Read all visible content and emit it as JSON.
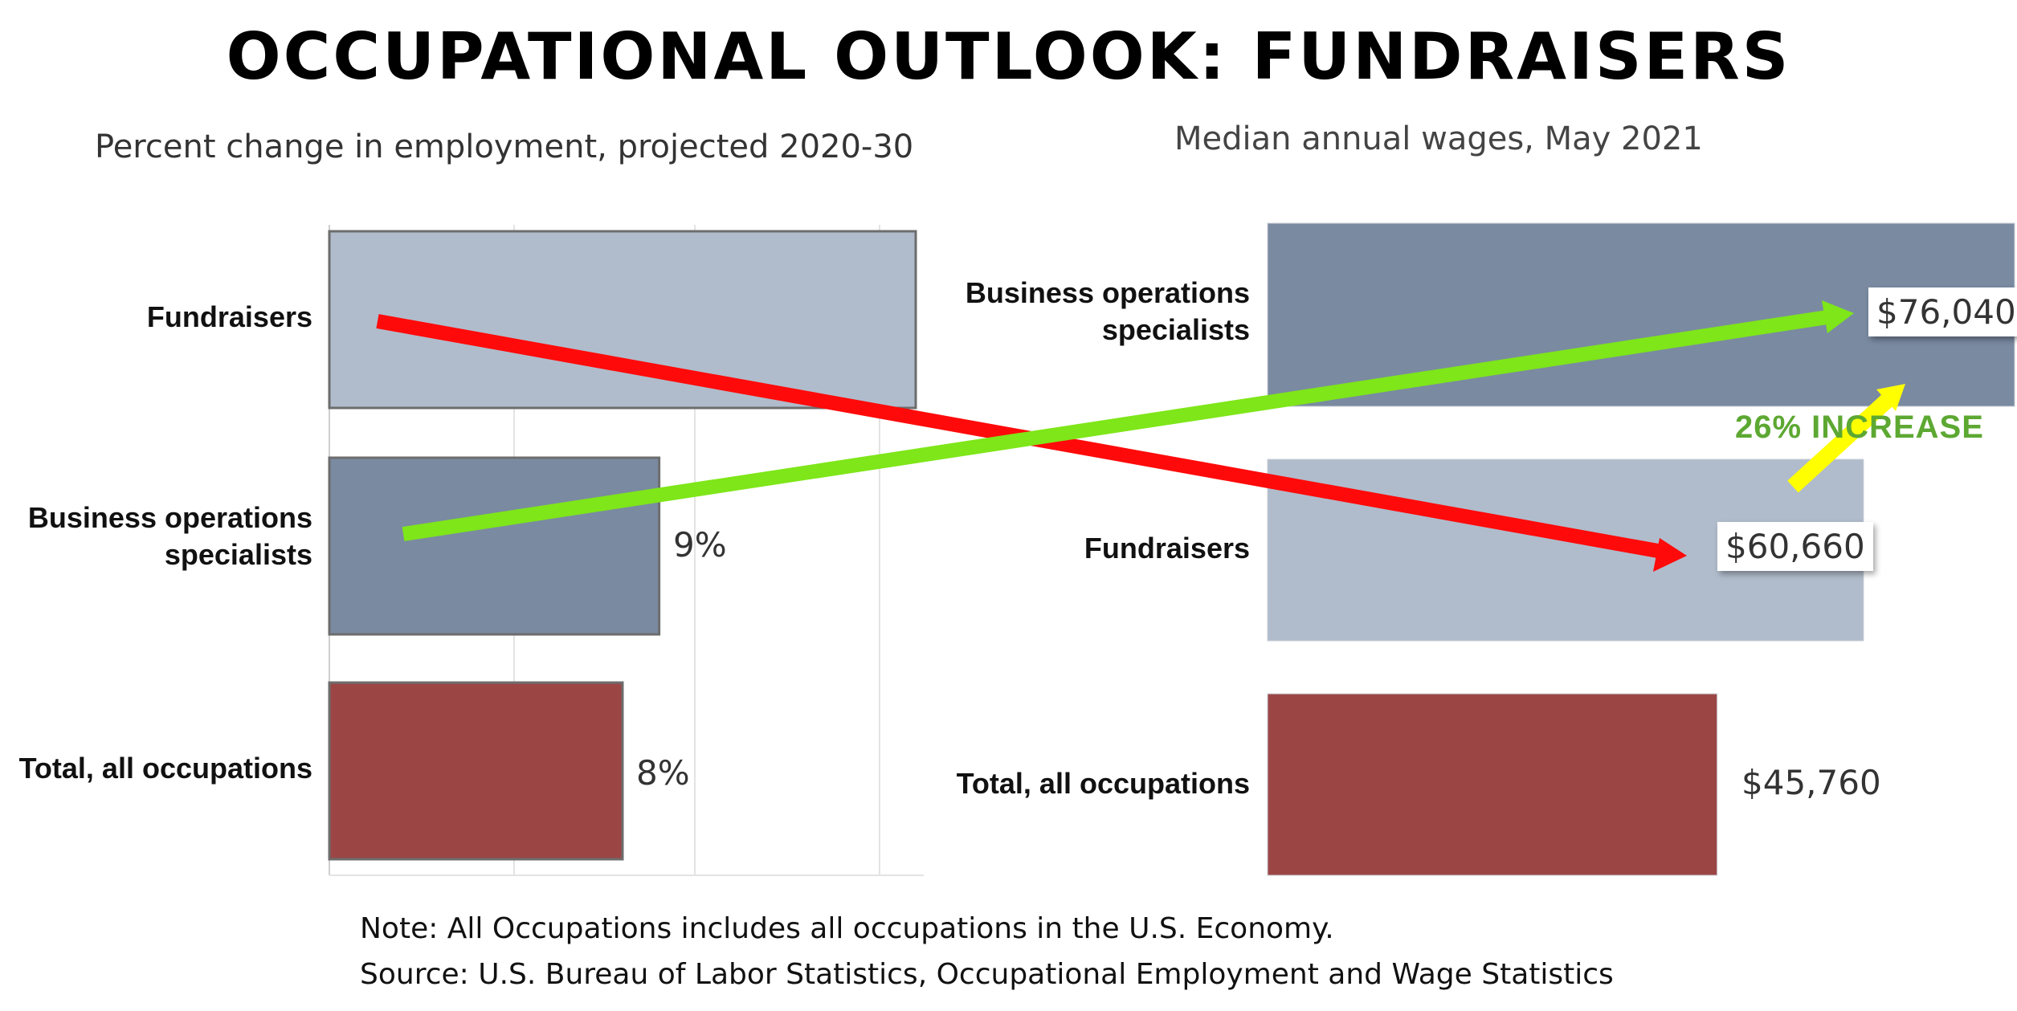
{
  "title": "OCCUPATIONAL OUTLOOK: FUNDRAISERS",
  "chart_data": [
    {
      "type": "bar",
      "orientation": "horizontal",
      "title": "Percent change in employment, projected 2020-30",
      "categories": [
        "Fundraisers",
        "Business operations specialists",
        "Total, all occupations"
      ],
      "values": [
        16,
        9,
        8
      ],
      "data_labels": [
        "",
        "9%",
        "8%"
      ],
      "bar_colors": [
        "#b0bccb",
        "#7a8aa1",
        "#9c4545"
      ],
      "xlim": [
        0,
        16
      ],
      "grid": true
    },
    {
      "type": "bar",
      "orientation": "horizontal",
      "title": "Median annual wages, May 2021",
      "categories": [
        "Business operations specialists",
        "Fundraisers",
        "Total, all occupations"
      ],
      "values": [
        76040,
        60660,
        45760
      ],
      "data_labels": [
        "$76,040",
        "$60,660",
        "$45,760"
      ],
      "bar_colors": [
        "#7a8aa1",
        "#b0bccb",
        "#9c4545"
      ],
      "xlim": [
        0,
        76040
      ],
      "grid": false
    }
  ],
  "annotations": {
    "increase_label": "26% INCREASE",
    "green_arrow_color": "#7ee619",
    "red_arrow_color": "#ff0a0a",
    "yellow_arrow_color": "#ffff00",
    "increase_color": "#5da832"
  },
  "footer": {
    "note": "Note: All Occupations includes all occupations in the U.S. Economy.",
    "source": "Source: U.S. Bureau of Labor Statistics, Occupational Employment and Wage Statistics"
  }
}
